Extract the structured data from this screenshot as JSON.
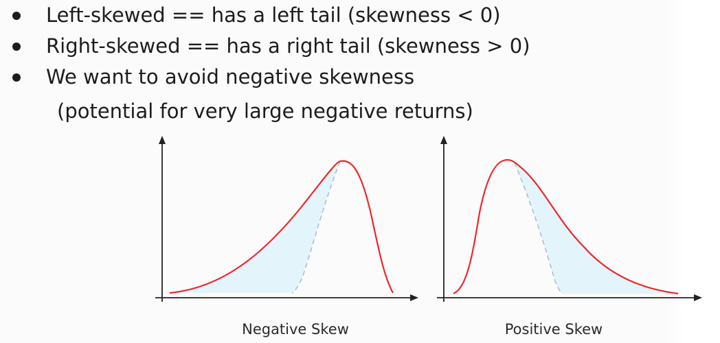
{
  "bullets": [
    "Left-skewed == has a left tail (skewness < 0)",
    "Right-skewed == has a right tail (skewness > 0)",
    "We want to avoid negative skewness"
  ],
  "continuation": "(potential for very large negative returns)",
  "figures": {
    "negative": {
      "caption": "Negative Skew"
    },
    "positive": {
      "caption": "Positive Skew"
    }
  },
  "colors": {
    "curve": "#f0262a",
    "fill": "#e3f4fb",
    "dashed": "#a9b8dc",
    "axis": "#222222"
  }
}
